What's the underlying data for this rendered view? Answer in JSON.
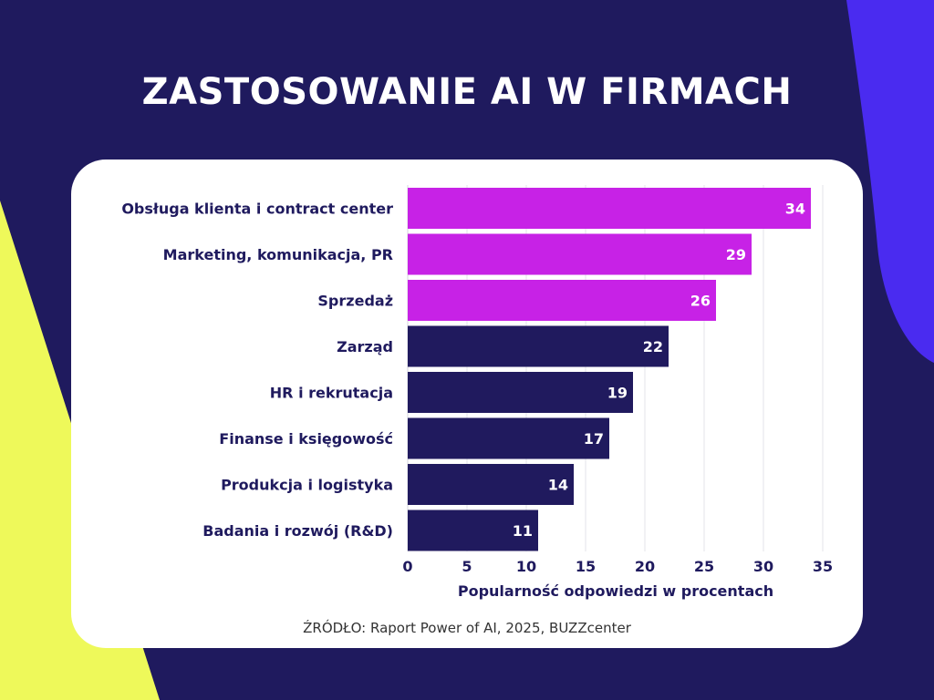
{
  "title": "ZASTOSOWANIE AI W FIRMACH",
  "source": "ŹRÓDŁO: Raport Power of AI, 2025, BUZZcenter",
  "colors": {
    "background": "#1f1a5e",
    "accent_yellow": "#eef95a",
    "accent_blue": "#4a2bf0",
    "bar_highlight": "#c722e6",
    "bar_default": "#201a5e",
    "card": "#ffffff"
  },
  "chart_data": {
    "type": "bar",
    "orientation": "horizontal",
    "categories": [
      "Obsługa klienta i contract center",
      "Marketing, komunikacja, PR",
      "Sprzedaż",
      "Zarząd",
      "HR i rekrutacja",
      "Finanse i księgowość",
      "Produkcja i logistyka",
      "Badania i rozwój (R&D)"
    ],
    "values": [
      34,
      29,
      26,
      22,
      19,
      17,
      14,
      11
    ],
    "highlighted": [
      true,
      true,
      true,
      false,
      false,
      false,
      false,
      false
    ],
    "xlabel": "Popularność odpowiedzi w procentach",
    "ylabel": "",
    "xlim": [
      0,
      35
    ],
    "xticks": [
      0,
      5,
      10,
      15,
      20,
      25,
      30,
      35
    ],
    "grid": true,
    "data_labels": true
  }
}
